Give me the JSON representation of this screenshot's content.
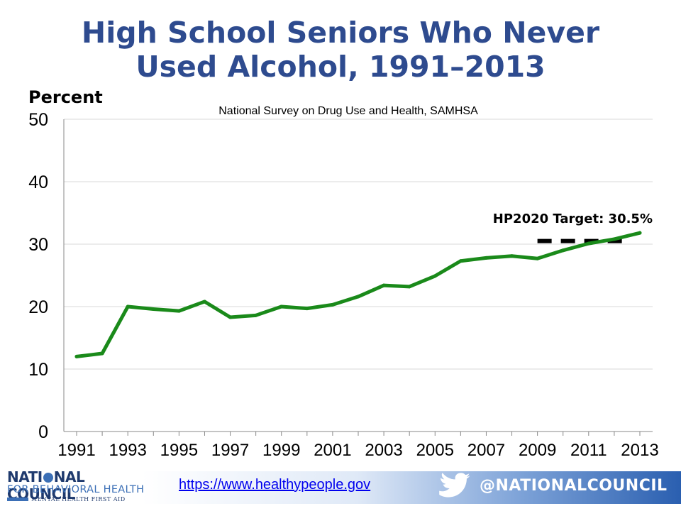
{
  "title_line1": "High School Seniors Who Never",
  "title_line2": "Used Alcohol, 1991–2013",
  "source": "National Survey on Drug Use and Health, SAMHSA",
  "footer": {
    "logo_line1": "NATI",
    "logo_line1b": "NAL COUNCIL",
    "logo_line2": "FOR BEHAVIORAL HEALTH",
    "logo_line3": "MENTAL HEALTH FIRST AID",
    "link": "https://www.healthypeople.gov",
    "handle": "@NATIONALCOUNCIL"
  },
  "colors": {
    "title": "#2e4b8f",
    "line": "#1a8a1a",
    "target": "#000000",
    "grid": "#d9d9d9"
  },
  "chart_data": {
    "type": "line",
    "ylabel": "Percent",
    "xlabel": "",
    "ylim": [
      0,
      50
    ],
    "yticks": [
      0,
      10,
      20,
      30,
      40,
      50
    ],
    "xticks": [
      "1991",
      "1993",
      "1995",
      "1997",
      "1999",
      "2001",
      "2003",
      "2005",
      "2007",
      "2009",
      "2011",
      "2013"
    ],
    "grid": true,
    "series": [
      {
        "x": [
          1991,
          1992,
          1993,
          1994,
          1995,
          1996,
          1997,
          1998,
          1999,
          2000,
          2001,
          2002,
          2003,
          2004,
          2005,
          2006,
          2007,
          2008,
          2009,
          2010,
          2011,
          2012,
          2013
        ],
        "values": [
          12.0,
          12.5,
          20.0,
          19.6,
          19.3,
          20.8,
          18.3,
          18.6,
          20.0,
          19.7,
          20.3,
          21.6,
          23.4,
          23.2,
          24.9,
          27.3,
          27.8,
          28.1,
          27.7,
          29.0,
          30.1,
          30.8,
          31.8
        ]
      }
    ],
    "target": {
      "label": "HP2020 Target: 30.5%",
      "value": 30.5,
      "x_range": [
        2009,
        2012.5
      ]
    }
  }
}
